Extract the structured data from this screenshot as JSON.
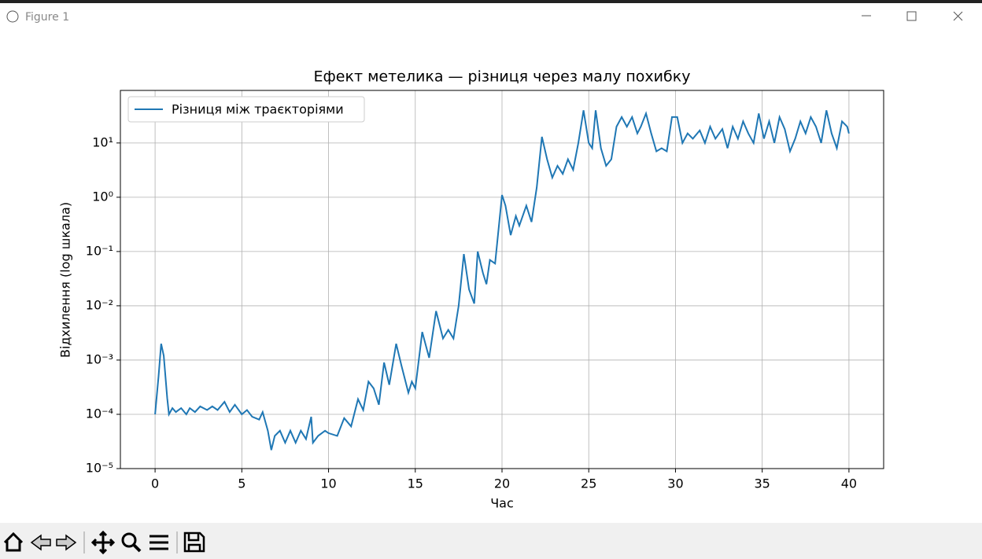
{
  "window_title": "Figure 1",
  "chart_data": {
    "type": "line",
    "title": "Ефект метелика — різниця через малу похибку",
    "xlabel": "Час",
    "ylabel": "Відхилення (log шкала)",
    "x": [
      0,
      0.2,
      0.35,
      0.5,
      0.7,
      0.8,
      1.0,
      1.2,
      1.5,
      1.8,
      2.0,
      2.3,
      2.6,
      3.0,
      3.3,
      3.6,
      4.0,
      4.3,
      4.6,
      5.0,
      5.3,
      5.6,
      6.0,
      6.2,
      6.5,
      6.7,
      6.9,
      7.2,
      7.5,
      7.8,
      8.1,
      8.4,
      8.7,
      9.0,
      9.1,
      9.4,
      9.8,
      10.0,
      10.5,
      10.9,
      11.3,
      11.7,
      12.0,
      12.3,
      12.6,
      12.9,
      13.2,
      13.5,
      13.9,
      14.2,
      14.6,
      14.8,
      15.0,
      15.4,
      15.8,
      16.2,
      16.6,
      16.9,
      17.2,
      17.5,
      17.8,
      18.1,
      18.4,
      18.6,
      18.9,
      19.1,
      19.3,
      19.6,
      20.0,
      20.2,
      20.5,
      20.8,
      21.0,
      21.4,
      21.7,
      22.0,
      22.3,
      22.6,
      22.9,
      23.2,
      23.5,
      23.8,
      24.1,
      24.4,
      24.7,
      25.0,
      25.2,
      25.4,
      25.7,
      26.0,
      26.3,
      26.6,
      26.9,
      27.2,
      27.5,
      27.8,
      28.0,
      28.3,
      28.6,
      28.9,
      29.2,
      29.5,
      29.8,
      30.1,
      30.4,
      30.7,
      31.0,
      31.4,
      31.7,
      32.0,
      32.3,
      32.7,
      33.0,
      33.3,
      33.6,
      33.9,
      34.2,
      34.5,
      34.8,
      35.1,
      35.4,
      35.7,
      36.0,
      36.3,
      36.6,
      36.9,
      37.2,
      37.5,
      37.8,
      38.1,
      38.4,
      38.7,
      39.0,
      39.3,
      39.6,
      39.9,
      40.0
    ],
    "series": [
      {
        "name": "Різниця між траєкторіями",
        "color": "#1f77b4",
        "values": [
          0.0001,
          0.0005,
          0.002,
          0.0012,
          0.0002,
          0.0001,
          0.00013,
          0.00011,
          0.00013,
          0.0001,
          0.00013,
          0.00011,
          0.00014,
          0.00012,
          0.00014,
          0.00012,
          0.00017,
          0.00011,
          0.00015,
          0.0001,
          0.00012,
          9e-05,
          8e-05,
          0.00011,
          5e-05,
          2.2e-05,
          4e-05,
          5e-05,
          3e-05,
          5e-05,
          3e-05,
          5e-05,
          3.5e-05,
          9e-05,
          3e-05,
          4e-05,
          5e-05,
          4.5e-05,
          4e-05,
          8.5e-05,
          6e-05,
          0.00019,
          0.00012,
          0.0004,
          0.0003,
          0.00015,
          0.0009,
          0.00035,
          0.002,
          0.0008,
          0.00025,
          0.0004,
          0.0003,
          0.0033,
          0.0011,
          0.008,
          0.0025,
          0.0036,
          0.0025,
          0.01,
          0.09,
          0.02,
          0.011,
          0.1,
          0.04,
          0.025,
          0.07,
          0.06,
          1.1,
          0.7,
          0.2,
          0.45,
          0.3,
          0.7,
          0.35,
          1.5,
          13,
          5,
          2.3,
          3.8,
          2.7,
          5,
          3.2,
          10,
          40,
          10,
          8,
          40,
          8,
          3.8,
          5,
          20,
          30,
          20,
          30,
          15,
          20,
          35,
          15,
          7,
          8,
          7,
          30,
          30,
          10,
          15,
          12,
          17,
          10,
          20,
          12,
          18,
          8,
          20,
          12,
          25,
          15,
          10,
          35,
          12,
          25,
          10,
          30,
          18,
          7,
          12,
          25,
          15,
          30,
          20,
          10,
          40,
          15,
          8,
          25,
          20,
          15
        ]
      }
    ],
    "xlim": [
      -2,
      42
    ],
    "ylim": [
      1e-05,
      93
    ],
    "xticks": [
      0,
      5,
      10,
      15,
      20,
      25,
      30,
      35,
      40
    ],
    "yticks": [
      {
        "value": 1e-05,
        "label": "10⁻⁵"
      },
      {
        "value": 0.0001,
        "label": "10⁻⁴"
      },
      {
        "value": 0.001,
        "label": "10⁻³"
      },
      {
        "value": 0.01,
        "label": "10⁻²"
      },
      {
        "value": 0.1,
        "label": "10⁻¹"
      },
      {
        "value": 1,
        "label": "10⁰"
      },
      {
        "value": 10,
        "label": "10¹"
      }
    ],
    "log_y": true,
    "grid": true,
    "legend": "upper left"
  }
}
